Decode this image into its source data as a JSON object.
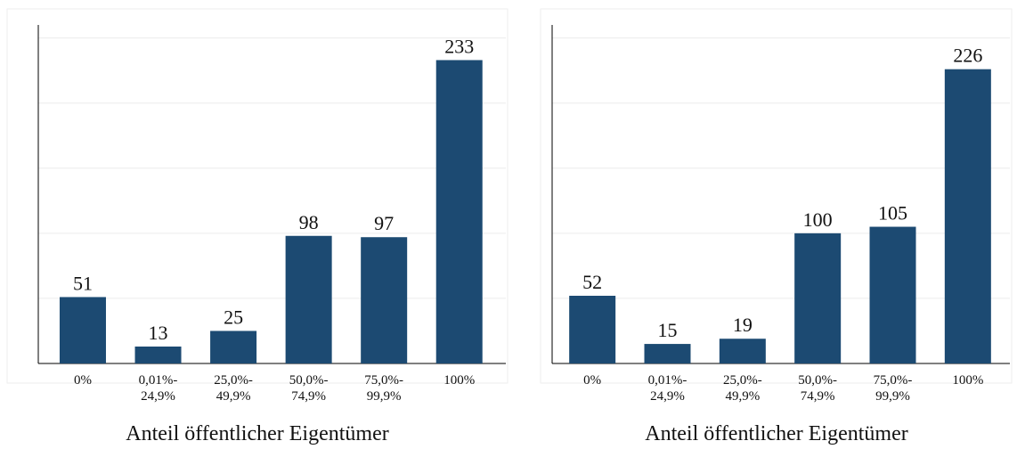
{
  "chart_data": [
    {
      "type": "bar",
      "x_label": "Anteil öffentlicher Eigentümer",
      "categories": [
        "0%",
        "0,01%-\n24,9%",
        "25,0%-\n49,9%",
        "50,0%-\n74,9%",
        "75,0%-\n99,9%",
        "100%"
      ],
      "values": [
        51,
        13,
        25,
        98,
        97,
        233
      ],
      "color": "#1c4a72",
      "ylim": [
        0,
        260
      ],
      "yticks": [
        50,
        100,
        150,
        200,
        250
      ],
      "grid": true
    },
    {
      "type": "bar",
      "x_label": "Anteil öffentlicher Eigentümer",
      "categories": [
        "0%",
        "0,01%-\n24,9%",
        "25,0%-\n49,9%",
        "50,0%-\n74,9%",
        "75,0%-\n99,9%",
        "100%"
      ],
      "values": [
        52,
        15,
        19,
        100,
        105,
        226
      ],
      "color": "#1c4a72",
      "ylim": [
        0,
        260
      ],
      "yticks": [
        50,
        100,
        150,
        200,
        250
      ],
      "grid": true
    }
  ]
}
